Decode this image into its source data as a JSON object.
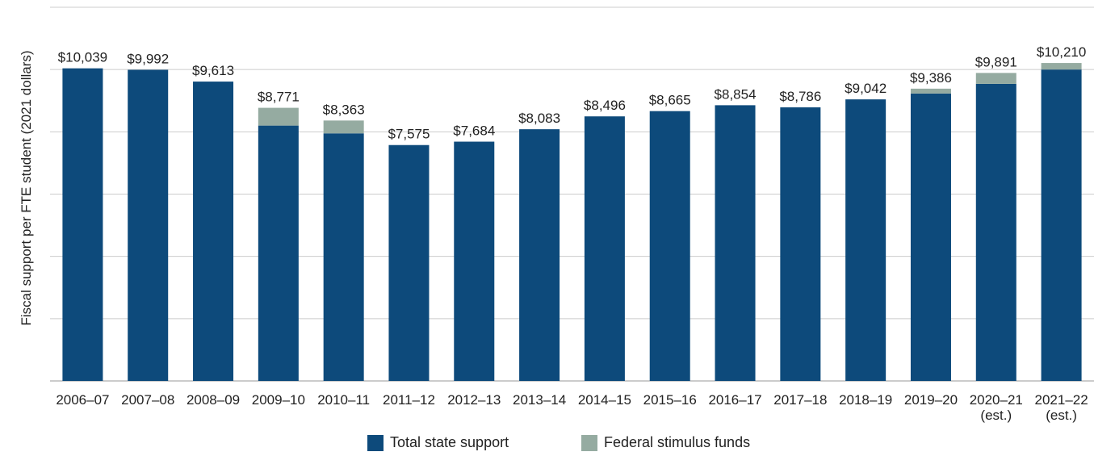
{
  "chart_data": {
    "type": "bar",
    "stacked": true,
    "ylabel": "Fiscal support per FTE student (2021 dollars)",
    "xlabel": "",
    "title": "",
    "ylim": [
      0,
      12000
    ],
    "grid": true,
    "legend_position": "bottom-center",
    "categories": [
      [
        "2006–07"
      ],
      [
        "2007–08"
      ],
      [
        "2008–09"
      ],
      [
        "2009–10"
      ],
      [
        "2010–11"
      ],
      [
        "2011–12"
      ],
      [
        "2012–13"
      ],
      [
        "2013–14"
      ],
      [
        "2014–15"
      ],
      [
        "2015–16"
      ],
      [
        "2016–17"
      ],
      [
        "2017–18"
      ],
      [
        "2018–19"
      ],
      [
        "2019–20"
      ],
      [
        "2020–21",
        "(est.)"
      ],
      [
        "2021–22",
        "(est.)"
      ]
    ],
    "totals": [
      "$10,039",
      "$9,992",
      "$9,613",
      "$8,771",
      "$8,363",
      "$7,575",
      "$7,684",
      "$8,083",
      "$8,496",
      "$8,665",
      "$8,854",
      "$8,786",
      "$9,042",
      "$9,386",
      "$9,891",
      "$10,210"
    ],
    "series": [
      {
        "name": "Total state support",
        "color": "#0d4a7b",
        "values": [
          10039,
          9992,
          9613,
          8200,
          7950,
          7575,
          7684,
          8083,
          8496,
          8665,
          8854,
          8786,
          9042,
          9230,
          9540,
          10000
        ]
      },
      {
        "name": "Federal stimulus funds",
        "color": "#95aba1",
        "values": [
          0,
          0,
          0,
          571,
          413,
          0,
          0,
          0,
          0,
          0,
          0,
          0,
          0,
          156,
          351,
          210
        ]
      }
    ]
  },
  "colors": {
    "axis": "#999999",
    "grid": "#cccccc"
  }
}
